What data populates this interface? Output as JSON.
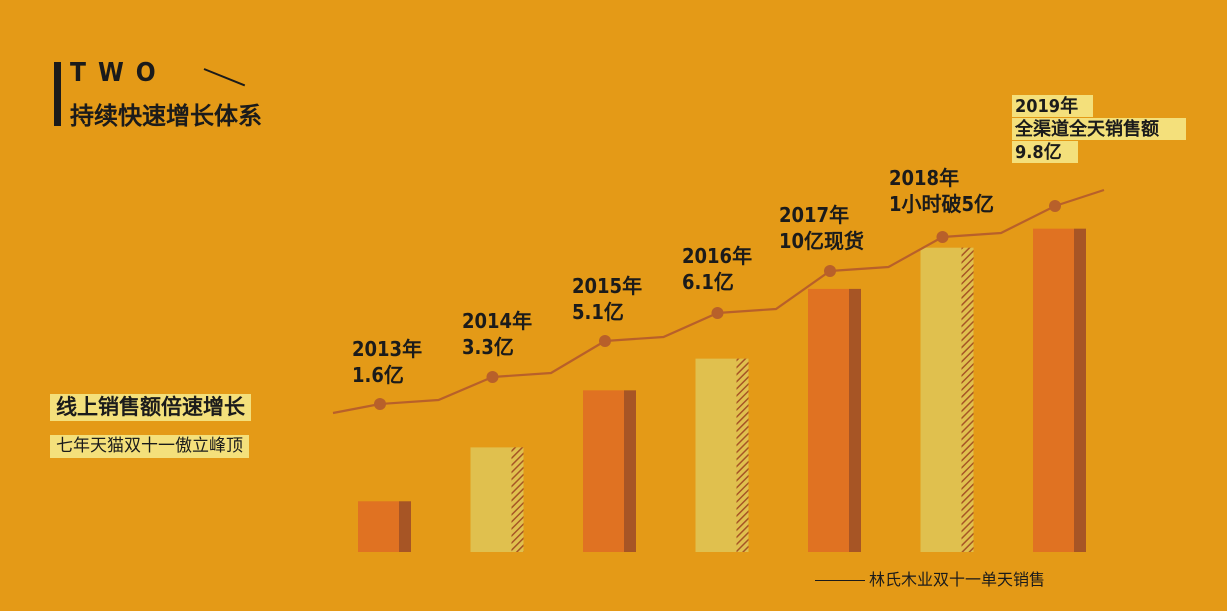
{
  "header": {
    "eyebrow": "TWO",
    "title": "持续快速增长体系"
  },
  "tags": {
    "line1": "线上销售额倍速增长",
    "line2": "七年天猫双十一傲立峰顶"
  },
  "legend": {
    "label": "林氏木业双十一单天销售"
  },
  "colors": {
    "background": "#E49A17",
    "bar_orange": "#E07222",
    "bar_yellow": "#E0C04E",
    "bar_shade": "#A75525",
    "line": "#B8602A",
    "highlight": "#F4E07B"
  },
  "chart_data": {
    "type": "bar",
    "categories": [
      "2013年",
      "2014年",
      "2015年",
      "2016年",
      "2017年",
      "2018年",
      "2019年"
    ],
    "values": [
      1.6,
      3.3,
      5.1,
      6.1,
      8.3,
      9.6,
      10.2
    ],
    "bar_styles": [
      "orange",
      "yellow",
      "orange",
      "yellow",
      "orange",
      "yellow",
      "orange"
    ],
    "annotations": [
      {
        "lines": [
          "2013年",
          "1.6亿"
        ]
      },
      {
        "lines": [
          "2014年",
          "3.3亿"
        ]
      },
      {
        "lines": [
          "2015年",
          "5.1亿"
        ]
      },
      {
        "lines": [
          "2016年",
          "6.1亿"
        ]
      },
      {
        "lines": [
          "2017年",
          "10亿现货"
        ]
      },
      {
        "lines": [
          "2018年",
          "1小时破5亿"
        ]
      },
      {
        "lines": [
          "2019年",
          "全渠道全天销售额",
          "9.8亿"
        ],
        "highlight": true
      }
    ],
    "grid": false,
    "legend": "bottom-right"
  }
}
